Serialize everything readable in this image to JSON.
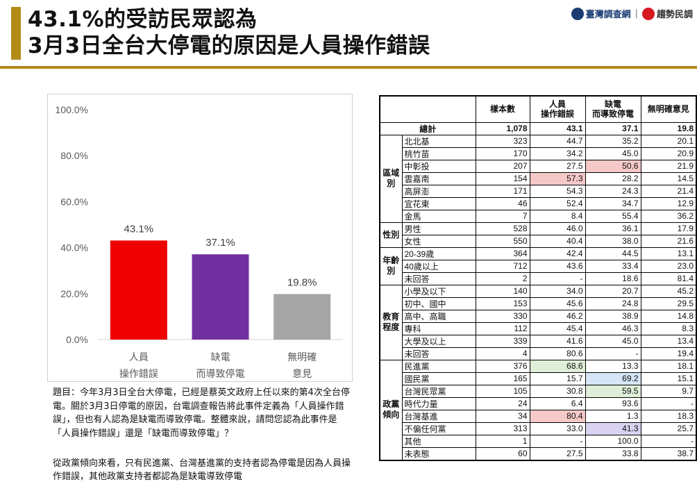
{
  "header": {
    "title_line1": "43.1%的受訪民眾認為",
    "title_line2": "3月3日全台大停電的原因是人員操作錯誤",
    "logo1": "臺灣調查網",
    "logo2": "趨勢民調"
  },
  "colors": {
    "accent": "#b38a16",
    "bar1": "#ee0000",
    "bar2": "#7030a0",
    "bar3": "#a6a6a6"
  },
  "chart_data": {
    "type": "bar",
    "categories": [
      "人員\n操作錯誤",
      "缺電\n而導致停電",
      "無明確\n意見"
    ],
    "category_lines": [
      [
        "人員",
        "操作錯誤"
      ],
      [
        "缺電",
        "而導致停電"
      ],
      [
        "無明確",
        "意見"
      ]
    ],
    "values": [
      43.1,
      37.1,
      19.8
    ],
    "value_labels": [
      "43.1%",
      "37.1%",
      "19.8%"
    ],
    "bar_colors": [
      "#ee0000",
      "#7030a0",
      "#a6a6a6"
    ],
    "yticks": [
      "0.0%",
      "20.0%",
      "40.0%",
      "60.0%",
      "80.0%",
      "100.0%"
    ],
    "ylim": [
      0,
      100
    ],
    "grid": false,
    "title": "",
    "xlabel": "",
    "ylabel": ""
  },
  "question": "題目：今年3月3日全台大停電，已經是蔡英文政府上任以來的第4次全台停電。關於3月3日停電的原因，台電調查報告將此事件定義為「人員操作錯誤」，但也有人認為是缺電而導致停電。整體來說，請問您認為此事件是「人員操作錯誤」還是「缺電而導致停電」？",
  "note": "從政黨傾向來看，只有民進黨、台灣基進黨的支持者認為停電是因為人員操作錯誤，其他政黨支持者都認為是缺電導致停電",
  "table": {
    "headers": {
      "n": "樣本數",
      "c1_l1": "人員",
      "c1_l2": "操作錯誤",
      "c2_l1": "缺電",
      "c2_l2": "而導致停電",
      "c3": "無明確意見"
    },
    "total": {
      "label": "總計",
      "n": "1,078",
      "v1": "43.1",
      "v2": "37.1",
      "v3": "19.8"
    },
    "groups": [
      {
        "label_lines": [
          "區域",
          "別"
        ],
        "rows": [
          {
            "label": "北北基",
            "n": "323",
            "v1": "44.7",
            "v2": "35.2",
            "v3": "20.1"
          },
          {
            "label": "桃竹苗",
            "n": "170",
            "v1": "34.2",
            "v2": "45.0",
            "v3": "20.9"
          },
          {
            "label": "中彰投",
            "n": "207",
            "v1": "27.5",
            "v2": "50.6",
            "v3": "21.9",
            "hl2": "red"
          },
          {
            "label": "雲嘉南",
            "n": "154",
            "v1": "57.3",
            "v2": "28.2",
            "v3": "14.5",
            "hl1": "red"
          },
          {
            "label": "高屏澎",
            "n": "171",
            "v1": "54.3",
            "v2": "24.3",
            "v3": "21.4"
          },
          {
            "label": "宜花東",
            "n": "46",
            "v1": "52.4",
            "v2": "34.7",
            "v3": "12.9"
          },
          {
            "label": "金馬",
            "n": "7",
            "v1": "8.4",
            "v2": "55.4",
            "v3": "36.2"
          }
        ]
      },
      {
        "label_lines": [
          "性別"
        ],
        "rows": [
          {
            "label": "男性",
            "n": "528",
            "v1": "46.0",
            "v2": "36.1",
            "v3": "17.9"
          },
          {
            "label": "女性",
            "n": "550",
            "v1": "40.4",
            "v2": "38.0",
            "v3": "21.6"
          }
        ]
      },
      {
        "label_lines": [
          "年齡",
          "別"
        ],
        "rows": [
          {
            "label": "20-39歲",
            "n": "364",
            "v1": "42.4",
            "v2": "44.5",
            "v3": "13.1"
          },
          {
            "label": "40歲以上",
            "n": "712",
            "v1": "43.6",
            "v2": "33.4",
            "v3": "23.0"
          },
          {
            "label": "未回答",
            "n": "2",
            "v1": "-",
            "v2": "18.6",
            "v3": "81.4"
          }
        ]
      },
      {
        "label_lines": [
          "教育",
          "程度"
        ],
        "rows": [
          {
            "label": "小學及以下",
            "n": "140",
            "v1": "34.0",
            "v2": "20.7",
            "v3": "45.2"
          },
          {
            "label": "初中、國中",
            "n": "153",
            "v1": "45.6",
            "v2": "24.8",
            "v3": "29.5"
          },
          {
            "label": "高中、高職",
            "n": "330",
            "v1": "46.2",
            "v2": "38.9",
            "v3": "14.8"
          },
          {
            "label": "專科",
            "n": "112",
            "v1": "45.4",
            "v2": "46.3",
            "v3": "8.3"
          },
          {
            "label": "大學及以上",
            "n": "339",
            "v1": "41.6",
            "v2": "45.0",
            "v3": "13.4"
          },
          {
            "label": "未回答",
            "n": "4",
            "v1": "80.6",
            "v2": "-",
            "v3": "19.4"
          }
        ]
      },
      {
        "label_lines": [
          "政黨",
          "傾向"
        ],
        "rows": [
          {
            "label": "民進黨",
            "n": "376",
            "v1": "68.6",
            "v2": "13.3",
            "v3": "18.1",
            "hl1": "green"
          },
          {
            "label": "國民黨",
            "n": "165",
            "v1": "15.7",
            "v2": "69.2",
            "v3": "15.1",
            "hl2": "blue"
          },
          {
            "label": "台灣民眾黨",
            "n": "105",
            "v1": "30.8",
            "v2": "59.5",
            "v3": "9.7",
            "hl2": "green"
          },
          {
            "label": "時代力量",
            "n": "24",
            "v1": "6.4",
            "v2": "93.6",
            "v3": "-"
          },
          {
            "label": "台灣基進",
            "n": "34",
            "v1": "80.4",
            "v2": "1.3",
            "v3": "18.3",
            "hl1": "red"
          },
          {
            "label": "不偏任何黨",
            "n": "313",
            "v1": "33.0",
            "v2": "41.3",
            "v3": "25.7",
            "hl2": "purple"
          },
          {
            "label": "其他",
            "n": "1",
            "v1": "-",
            "v2": "100.0",
            "v3": "-"
          },
          {
            "label": "未表態",
            "n": "60",
            "v1": "27.5",
            "v2": "33.8",
            "v3": "38.7"
          }
        ]
      }
    ]
  }
}
